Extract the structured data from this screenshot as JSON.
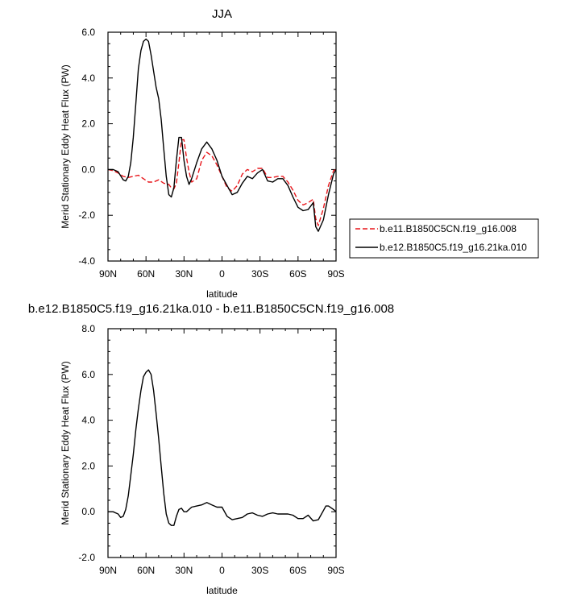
{
  "chart_data": [
    {
      "type": "line",
      "title": "JJA",
      "xlabel": "latitude",
      "ylabel": "Merid Stationary Eddy Heat Flux (PW)",
      "xlim": [
        90,
        -90
      ],
      "ylim": [
        -4,
        6
      ],
      "x_ticks": [
        {
          "value": 90,
          "label": "90N"
        },
        {
          "value": 60,
          "label": "60N"
        },
        {
          "value": 30,
          "label": "30N"
        },
        {
          "value": 0,
          "label": "0"
        },
        {
          "value": -30,
          "label": "30S"
        },
        {
          "value": -60,
          "label": "60S"
        },
        {
          "value": -90,
          "label": "90S"
        }
      ],
      "y_ticks": [
        {
          "value": -4,
          "label": "-4.0"
        },
        {
          "value": -2,
          "label": "-2.0"
        },
        {
          "value": 0,
          "label": "0.0"
        },
        {
          "value": 2,
          "label": "2.0"
        },
        {
          "value": 4,
          "label": "4.0"
        },
        {
          "value": 6,
          "label": "6.0"
        }
      ],
      "legend_position": "right",
      "series": [
        {
          "name": "b.e11.B1850C5CN.f19_g16.008",
          "color": "#e8161b",
          "dash": "dashed",
          "x": [
            90,
            86,
            82,
            78,
            74,
            70,
            66,
            62,
            58,
            54,
            50,
            46,
            42,
            40,
            38,
            36,
            34,
            32,
            30,
            28,
            26,
            24,
            20,
            16,
            12,
            8,
            4,
            0,
            -4,
            -8,
            -12,
            -16,
            -20,
            -24,
            -28,
            -32,
            -36,
            -40,
            -44,
            -48,
            -52,
            -56,
            -60,
            -64,
            -68,
            -72,
            -74,
            -76,
            -80,
            -84,
            -88,
            -90
          ],
          "y": [
            0.0,
            -0.05,
            -0.15,
            -0.3,
            -0.35,
            -0.3,
            -0.25,
            -0.4,
            -0.55,
            -0.55,
            -0.45,
            -0.6,
            -0.65,
            -0.8,
            -0.85,
            -0.6,
            0.3,
            1.3,
            1.3,
            0.5,
            -0.1,
            -0.55,
            -0.4,
            0.4,
            0.75,
            0.6,
            0.2,
            -0.3,
            -0.8,
            -0.95,
            -0.7,
            -0.2,
            0.0,
            -0.1,
            0.05,
            0.05,
            -0.35,
            -0.35,
            -0.3,
            -0.3,
            -0.55,
            -0.9,
            -1.35,
            -1.55,
            -1.45,
            -1.3,
            -2.15,
            -2.45,
            -1.7,
            -0.7,
            -0.05,
            0.0
          ]
        },
        {
          "name": "b.e12.B1850C5.f19_g16.21ka.010",
          "color": "#000000",
          "dash": "solid",
          "x": [
            90,
            86,
            82,
            78,
            76,
            74,
            72,
            70,
            68,
            66,
            64,
            62,
            60,
            58,
            56,
            54,
            52,
            50,
            48,
            46,
            44,
            42,
            40,
            38,
            36,
            34,
            32,
            30,
            28,
            26,
            24,
            20,
            16,
            12,
            8,
            4,
            0,
            -4,
            -8,
            -12,
            -16,
            -20,
            -24,
            -28,
            -32,
            -36,
            -40,
            -44,
            -48,
            -52,
            -56,
            -60,
            -64,
            -68,
            -72,
            -74,
            -76,
            -80,
            -84,
            -88,
            -90
          ],
          "y": [
            0.0,
            0.0,
            -0.1,
            -0.45,
            -0.5,
            -0.3,
            0.3,
            1.4,
            2.9,
            4.4,
            5.2,
            5.6,
            5.7,
            5.6,
            5.0,
            4.3,
            3.6,
            3.1,
            2.2,
            0.9,
            -0.3,
            -1.1,
            -1.2,
            -0.8,
            0.4,
            1.4,
            1.4,
            0.4,
            -0.3,
            -0.65,
            -0.4,
            0.3,
            0.9,
            1.2,
            0.9,
            0.4,
            -0.3,
            -0.7,
            -1.1,
            -1.0,
            -0.6,
            -0.3,
            -0.4,
            -0.15,
            0.0,
            -0.5,
            -0.55,
            -0.4,
            -0.4,
            -0.7,
            -1.2,
            -1.65,
            -1.8,
            -1.75,
            -1.45,
            -2.5,
            -2.7,
            -2.2,
            -1.1,
            -0.2,
            0.0
          ]
        }
      ]
    },
    {
      "type": "line",
      "title": "b.e12.B1850C5.f19_g16.21ka.010 - b.e11.B1850C5CN.f19_g16.008",
      "xlabel": "latitude",
      "ylabel": "Merid Stationary Eddy Heat Flux (PW)",
      "xlim": [
        90,
        -90
      ],
      "ylim": [
        -2,
        8
      ],
      "x_ticks": [
        {
          "value": 90,
          "label": "90N"
        },
        {
          "value": 60,
          "label": "60N"
        },
        {
          "value": 30,
          "label": "30N"
        },
        {
          "value": 0,
          "label": "0"
        },
        {
          "value": -30,
          "label": "30S"
        },
        {
          "value": -60,
          "label": "60S"
        },
        {
          "value": -90,
          "label": "90S"
        }
      ],
      "y_ticks": [
        {
          "value": -2,
          "label": "-2.0"
        },
        {
          "value": 0,
          "label": "0.0"
        },
        {
          "value": 2,
          "label": "2.0"
        },
        {
          "value": 4,
          "label": "4.0"
        },
        {
          "value": 6,
          "label": "6.0"
        },
        {
          "value": 8,
          "label": "8.0"
        }
      ],
      "series": [
        {
          "color": "#000000",
          "dash": "solid",
          "x": [
            90,
            86,
            82,
            80,
            78,
            76,
            74,
            72,
            70,
            68,
            66,
            64,
            62,
            60,
            58,
            56,
            54,
            52,
            50,
            48,
            46,
            44,
            42,
            40,
            38,
            36,
            34,
            32,
            30,
            28,
            26,
            24,
            20,
            16,
            12,
            8,
            4,
            0,
            -4,
            -8,
            -12,
            -16,
            -20,
            -24,
            -28,
            -32,
            -36,
            -40,
            -44,
            -48,
            -52,
            -56,
            -60,
            -64,
            -68,
            -72,
            -76,
            -80,
            -82,
            -84,
            -88,
            -90
          ],
          "y": [
            0.0,
            0.0,
            -0.1,
            -0.25,
            -0.2,
            0.1,
            0.7,
            1.6,
            2.5,
            3.6,
            4.5,
            5.3,
            5.9,
            6.1,
            6.2,
            6.0,
            5.3,
            4.3,
            3.2,
            2.0,
            0.8,
            -0.1,
            -0.5,
            -0.6,
            -0.6,
            -0.2,
            0.1,
            0.15,
            0.0,
            0.0,
            0.1,
            0.2,
            0.25,
            0.3,
            0.4,
            0.3,
            0.2,
            0.2,
            -0.2,
            -0.35,
            -0.3,
            -0.25,
            -0.1,
            -0.05,
            -0.15,
            -0.2,
            -0.1,
            -0.05,
            -0.1,
            -0.1,
            -0.1,
            -0.15,
            -0.3,
            -0.3,
            -0.15,
            -0.4,
            -0.35,
            0.05,
            0.25,
            0.25,
            0.1,
            0.0
          ]
        }
      ]
    }
  ]
}
